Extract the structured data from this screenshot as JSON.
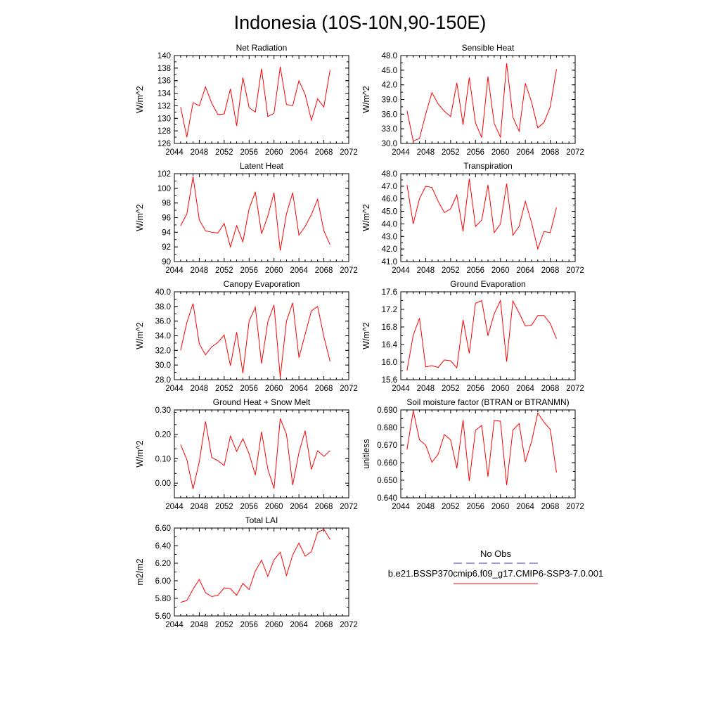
{
  "page": {
    "title": "Indonesia (10S-10N,90-150E)"
  },
  "legend": {
    "obs_label": "No Obs",
    "obs_color": "#3a3aa0",
    "model_label": "b.e21.BSSP370cmip6.f09_g17.CMIP6-SSP3-7.0.001",
    "model_color": "#ff0000"
  },
  "chart_data": [
    {
      "type": "line",
      "title": "Net Radiation",
      "ylabel": "W/m^2",
      "xlim": [
        2044,
        2072
      ],
      "xticks": [
        2044,
        2048,
        2052,
        2056,
        2060,
        2064,
        2068,
        2072
      ],
      "ylim": [
        126,
        140
      ],
      "yticks": [
        "126",
        "128",
        "130",
        "132",
        "134",
        "136",
        "138",
        "140"
      ],
      "series": [
        {
          "x": [
            2045,
            2046,
            2047,
            2048,
            2049,
            2050,
            2051,
            2052,
            2053,
            2054,
            2055,
            2056,
            2057,
            2058,
            2059,
            2060,
            2061,
            2062,
            2063,
            2064,
            2065,
            2066,
            2067,
            2068,
            2069
          ],
          "values": [
            131.8,
            127.0,
            132.5,
            132.0,
            135.0,
            132.4,
            130.6,
            130.7,
            134.7,
            128.8,
            136.5,
            131.7,
            131.0,
            137.9,
            130.3,
            130.8,
            138.2,
            132.2,
            132.0,
            136.0,
            133.8,
            129.7,
            133.1,
            131.8,
            137.7
          ]
        }
      ]
    },
    {
      "type": "line",
      "title": "Sensible Heat",
      "ylabel": "W/m^2",
      "xlim": [
        2044,
        2072
      ],
      "xticks": [
        2044,
        2048,
        2052,
        2056,
        2060,
        2064,
        2068,
        2072
      ],
      "ylim": [
        30.0,
        48.0
      ],
      "yticks": [
        "30.0",
        "33.0",
        "36.0",
        "39.0",
        "42.0",
        "45.0",
        "48.0"
      ],
      "series": [
        {
          "x": [
            2045,
            2046,
            2047,
            2048,
            2049,
            2050,
            2051,
            2052,
            2053,
            2054,
            2055,
            2056,
            2057,
            2058,
            2059,
            2060,
            2061,
            2062,
            2063,
            2064,
            2065,
            2066,
            2067,
            2068,
            2069
          ],
          "values": [
            36.7,
            30.5,
            31.0,
            36.0,
            40.4,
            38.1,
            36.6,
            35.5,
            42.4,
            33.8,
            43.5,
            34.2,
            31.2,
            43.7,
            34.1,
            31.3,
            46.4,
            35.4,
            32.5,
            42.3,
            38.5,
            33.2,
            34.3,
            37.5,
            45.2
          ]
        }
      ]
    },
    {
      "type": "line",
      "title": "Latent Heat",
      "ylabel": "W/m^2",
      "xlim": [
        2044,
        2072
      ],
      "xticks": [
        2044,
        2048,
        2052,
        2056,
        2060,
        2064,
        2068,
        2072
      ],
      "ylim": [
        90,
        102
      ],
      "yticks": [
        "90",
        "92",
        "94",
        "96",
        "98",
        "100",
        "102"
      ],
      "series": [
        {
          "x": [
            2045,
            2046,
            2047,
            2048,
            2049,
            2050,
            2051,
            2052,
            2053,
            2054,
            2055,
            2056,
            2057,
            2058,
            2059,
            2060,
            2061,
            2062,
            2063,
            2064,
            2065,
            2066,
            2067,
            2068,
            2069
          ],
          "values": [
            94.9,
            96.5,
            101.6,
            95.7,
            94.2,
            94.0,
            93.9,
            95.2,
            92.0,
            94.9,
            92.7,
            97.2,
            99.5,
            93.8,
            96.2,
            99.4,
            91.5,
            96.5,
            99.4,
            93.6,
            94.8,
            96.4,
            98.5,
            94.2,
            92.3
          ]
        }
      ]
    },
    {
      "type": "line",
      "title": "Transpiration",
      "ylabel": "W/m^2",
      "xlim": [
        2044,
        2072
      ],
      "xticks": [
        2044,
        2048,
        2052,
        2056,
        2060,
        2064,
        2068,
        2072
      ],
      "ylim": [
        41.0,
        48.0
      ],
      "yticks": [
        "41.0",
        "42.0",
        "43.0",
        "44.0",
        "45.0",
        "46.0",
        "47.0",
        "48.0"
      ],
      "series": [
        {
          "x": [
            2045,
            2046,
            2047,
            2048,
            2049,
            2050,
            2051,
            2052,
            2053,
            2054,
            2055,
            2056,
            2057,
            2058,
            2059,
            2060,
            2061,
            2062,
            2063,
            2064,
            2065,
            2066,
            2067,
            2068,
            2069
          ],
          "values": [
            47.1,
            44.0,
            46.0,
            47.0,
            46.9,
            45.8,
            44.9,
            45.2,
            46.3,
            43.4,
            47.6,
            43.8,
            44.3,
            47.1,
            43.3,
            44.0,
            47.2,
            43.1,
            43.8,
            45.8,
            44.1,
            42.0,
            43.4,
            43.3,
            45.3
          ]
        }
      ]
    },
    {
      "type": "line",
      "title": "Canopy Evaporation",
      "ylabel": "W/m^2",
      "xlim": [
        2044,
        2072
      ],
      "xticks": [
        2044,
        2048,
        2052,
        2056,
        2060,
        2064,
        2068,
        2072
      ],
      "ylim": [
        28.0,
        40.0
      ],
      "yticks": [
        "28.0",
        "30.0",
        "32.0",
        "34.0",
        "36.0",
        "38.0",
        "40.0"
      ],
      "series": [
        {
          "x": [
            2045,
            2046,
            2047,
            2048,
            2049,
            2050,
            2051,
            2052,
            2053,
            2054,
            2055,
            2056,
            2057,
            2058,
            2059,
            2060,
            2061,
            2062,
            2063,
            2064,
            2065,
            2066,
            2067,
            2068,
            2069
          ],
          "values": [
            32.0,
            35.8,
            38.4,
            32.9,
            31.4,
            32.5,
            33.1,
            34.1,
            29.9,
            34.5,
            28.9,
            36.0,
            37.9,
            30.2,
            35.9,
            38.2,
            28.3,
            36.0,
            38.5,
            31.0,
            34.2,
            37.4,
            38.0,
            33.9,
            30.5
          ]
        }
      ]
    },
    {
      "type": "line",
      "title": "Ground Evaporation",
      "ylabel": "W/m^2",
      "xlim": [
        2044,
        2072
      ],
      "xticks": [
        2044,
        2048,
        2052,
        2056,
        2060,
        2064,
        2068,
        2072
      ],
      "ylim": [
        15.6,
        17.6
      ],
      "yticks": [
        "15.6",
        "16.0",
        "16.4",
        "16.8",
        "17.2",
        "17.6"
      ],
      "series": [
        {
          "x": [
            2045,
            2046,
            2047,
            2048,
            2049,
            2050,
            2051,
            2052,
            2053,
            2054,
            2055,
            2056,
            2057,
            2058,
            2059,
            2060,
            2061,
            2062,
            2063,
            2064,
            2065,
            2066,
            2067,
            2068,
            2069
          ],
          "values": [
            15.81,
            16.61,
            17.0,
            15.89,
            15.92,
            15.88,
            16.05,
            16.03,
            15.87,
            16.96,
            16.2,
            17.34,
            17.4,
            16.6,
            17.1,
            17.4,
            16.01,
            17.39,
            17.12,
            16.82,
            16.84,
            17.06,
            17.06,
            16.88,
            16.53
          ]
        }
      ]
    },
    {
      "type": "line",
      "title": "Ground Heat + Snow Melt",
      "ylabel": "W/m^2",
      "xlim": [
        2044,
        2072
      ],
      "xticks": [
        2044,
        2048,
        2052,
        2056,
        2060,
        2064,
        2068,
        2072
      ],
      "ylim": [
        -0.06,
        0.3
      ],
      "yticks": [
        "0.00",
        "0.10",
        "0.20",
        "0.30"
      ],
      "series": [
        {
          "x": [
            2045,
            2046,
            2047,
            2048,
            2049,
            2050,
            2051,
            2052,
            2053,
            2054,
            2055,
            2056,
            2057,
            2058,
            2059,
            2060,
            2061,
            2062,
            2063,
            2064,
            2065,
            2066,
            2067,
            2068,
            2069
          ],
          "values": [
            0.158,
            0.097,
            -0.024,
            0.088,
            0.253,
            0.105,
            0.092,
            0.072,
            0.193,
            0.13,
            0.182,
            0.12,
            0.033,
            0.211,
            0.058,
            -0.022,
            0.265,
            0.2,
            -0.008,
            0.125,
            0.215,
            0.056,
            0.133,
            0.11,
            0.133
          ]
        }
      ]
    },
    {
      "type": "line",
      "title": "Soil moisture factor (BTRAN or BTRANMN)",
      "ylabel": "unitless",
      "xlim": [
        2044,
        2072
      ],
      "xticks": [
        2044,
        2048,
        2052,
        2056,
        2060,
        2064,
        2068,
        2072
      ],
      "ylim": [
        0.64,
        0.69
      ],
      "yticks": [
        "0.640",
        "0.650",
        "0.660",
        "0.670",
        "0.680",
        "0.690"
      ],
      "series": [
        {
          "x": [
            2045,
            2046,
            2047,
            2048,
            2049,
            2050,
            2051,
            2052,
            2053,
            2054,
            2055,
            2056,
            2057,
            2058,
            2059,
            2060,
            2061,
            2062,
            2063,
            2064,
            2065,
            2066,
            2067,
            2068,
            2069
          ],
          "values": [
            0.6675,
            0.6895,
            0.673,
            0.67,
            0.6602,
            0.6648,
            0.676,
            0.673,
            0.6568,
            0.6842,
            0.6495,
            0.6784,
            0.6812,
            0.652,
            0.684,
            0.6836,
            0.6472,
            0.6785,
            0.6822,
            0.6604,
            0.672,
            0.6882,
            0.683,
            0.679,
            0.6544
          ]
        }
      ]
    },
    {
      "type": "line",
      "title": "Total LAI",
      "ylabel": "m2/m2",
      "xlim": [
        2044,
        2072
      ],
      "xticks": [
        2044,
        2048,
        2052,
        2056,
        2060,
        2064,
        2068,
        2072
      ],
      "ylim": [
        5.6,
        6.6
      ],
      "yticks": [
        "5.60",
        "5.80",
        "6.00",
        "6.20",
        "6.40",
        "6.60"
      ],
      "series": [
        {
          "x": [
            2045,
            2046,
            2047,
            2048,
            2049,
            2050,
            2051,
            2052,
            2053,
            2054,
            2055,
            2056,
            2057,
            2058,
            2059,
            2060,
            2061,
            2062,
            2063,
            2064,
            2065,
            2066,
            2067,
            2068,
            2069
          ],
          "values": [
            5.755,
            5.775,
            5.905,
            6.015,
            5.865,
            5.82,
            5.835,
            5.92,
            5.91,
            5.835,
            5.97,
            5.9,
            6.11,
            6.235,
            6.05,
            6.24,
            6.325,
            6.06,
            6.295,
            6.43,
            6.28,
            6.33,
            6.55,
            6.585,
            6.47
          ]
        }
      ]
    }
  ]
}
